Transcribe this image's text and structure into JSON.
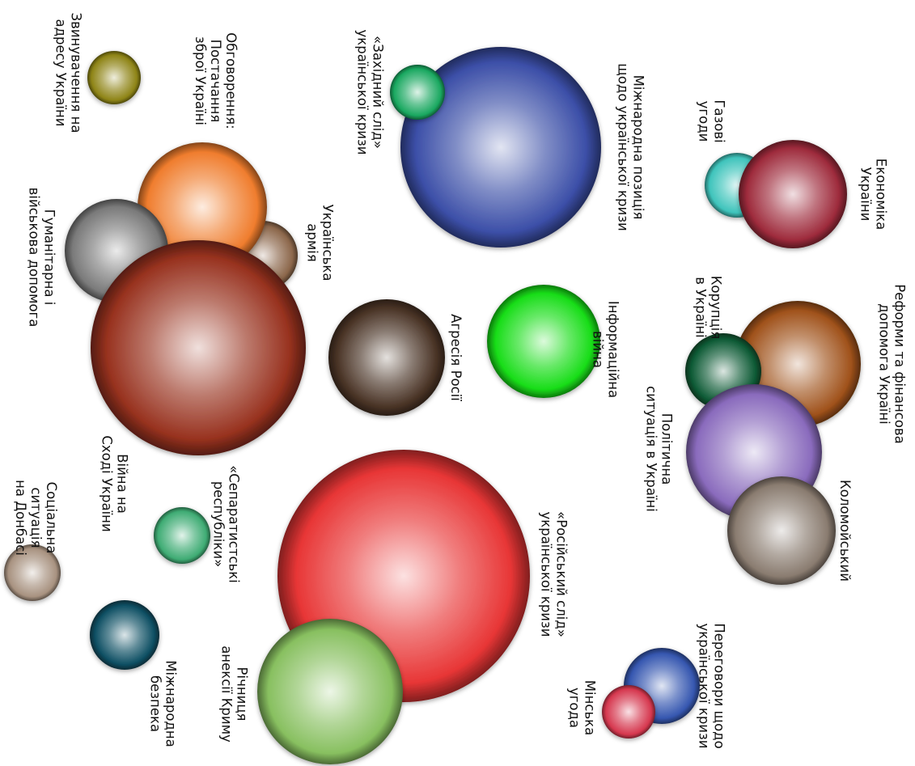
{
  "chart_data": {
    "type": "bubble",
    "title": "",
    "bubbles": [
      {
        "label": [
          "Міжнародна позиція",
          "щодо української кризи"
        ],
        "color": "#3c4fa8"
      },
      {
        "label": [
          "«Західний слід»",
          "української кризи"
        ],
        "color": "#1aa860"
      },
      {
        "label": [
          "Газові",
          "угоди"
        ],
        "color": "#3fc4bc"
      },
      {
        "label": [
          "Економіка",
          "України"
        ],
        "color": "#9e2b3c"
      },
      {
        "label": [
          "Реформи та фінансова",
          "допомога Україні"
        ],
        "color": "#a0521b"
      },
      {
        "label": [
          "Корупція",
          "в Україні"
        ],
        "color": "#0d5a35"
      },
      {
        "label": [
          "Політична",
          "ситуація в Україні"
        ],
        "color": "#8a6bbd"
      },
      {
        "label": [
          "Коломойський"
        ],
        "color": "#8a7c70"
      },
      {
        "label": [
          "Інформаційна",
          "війна"
        ],
        "color": "#18dd18"
      },
      {
        "label": [
          "Агресія Росії"
        ],
        "color": "#4a3426"
      },
      {
        "label": [
          "Українська",
          "армія"
        ],
        "color": "#8c674b"
      },
      {
        "label": [
          "Обговорення:",
          "Постачання",
          "зброї Україні"
        ],
        "color": "#f07d2e"
      },
      {
        "label": [
          "Гуманітарна і",
          "військова допомога"
        ],
        "color": "#7a7a7a"
      },
      {
        "label": [
          "Війна на",
          "Сході України"
        ],
        "color": "#98321f"
      },
      {
        "label": [
          "Звинувачення на",
          "адресу України"
        ],
        "color": "#8e8416"
      },
      {
        "label": [
          "«Російський слід»",
          "української кризи"
        ],
        "color": "#e83636"
      },
      {
        "label": [
          "Річниця",
          "анексії Криму"
        ],
        "color": "#88c060"
      },
      {
        "label": [
          "«Сепаратистські",
          "республіки»"
        ],
        "color": "#3fac74"
      },
      {
        "label": [
          "Соціальна",
          "ситуація",
          "на Донбасі"
        ],
        "color": "#a89280"
      },
      {
        "label": [
          "Міжнародна",
          "безпека"
        ],
        "color": "#0e4f63"
      },
      {
        "label": [
          "Переговори щодо",
          "української кризи"
        ],
        "color": "#3657b0"
      },
      {
        "label": [
          "Мінська",
          "угода"
        ],
        "color": "#d6384f"
      }
    ]
  }
}
